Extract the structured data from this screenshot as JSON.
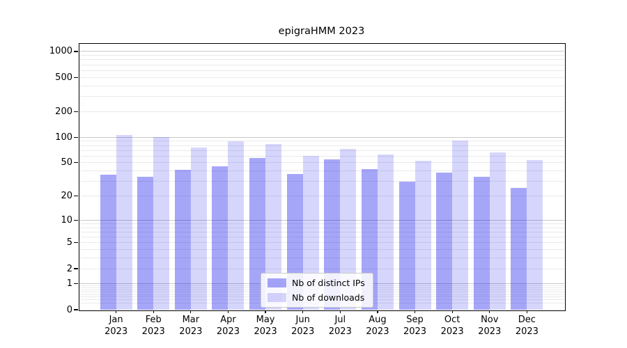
{
  "chart_data": {
    "type": "bar",
    "title": "epigraHMM 2023",
    "categories": [
      "Jan",
      "Feb",
      "Mar",
      "Apr",
      "May",
      "Jun",
      "Jul",
      "Aug",
      "Sep",
      "Oct",
      "Nov",
      "Dec"
    ],
    "year_label": "2023",
    "series": [
      {
        "name": "Nb of distinct IPs",
        "color": "rgba(0,0,238,0.35)",
        "values": [
          36,
          34,
          41,
          45,
          57,
          37,
          55,
          42,
          30,
          38,
          34,
          25
        ]
      },
      {
        "name": "Nb of downloads",
        "color": "rgba(0,0,238,0.16)",
        "values": [
          106,
          101,
          75,
          90,
          83,
          60,
          73,
          63,
          53,
          92,
          66,
          54
        ]
      }
    ],
    "yscale": "log10(value+1)",
    "yticks": [
      0,
      1,
      2,
      5,
      10,
      20,
      50,
      100,
      200,
      500,
      1000
    ],
    "ylim": [
      0,
      1250
    ],
    "grid": "both",
    "legend_position": "lower center",
    "colors": {
      "major_grid": "#c8c8c8",
      "minor_grid": "#eaeaea",
      "axis": "#000000",
      "background": "#ffffff"
    }
  }
}
